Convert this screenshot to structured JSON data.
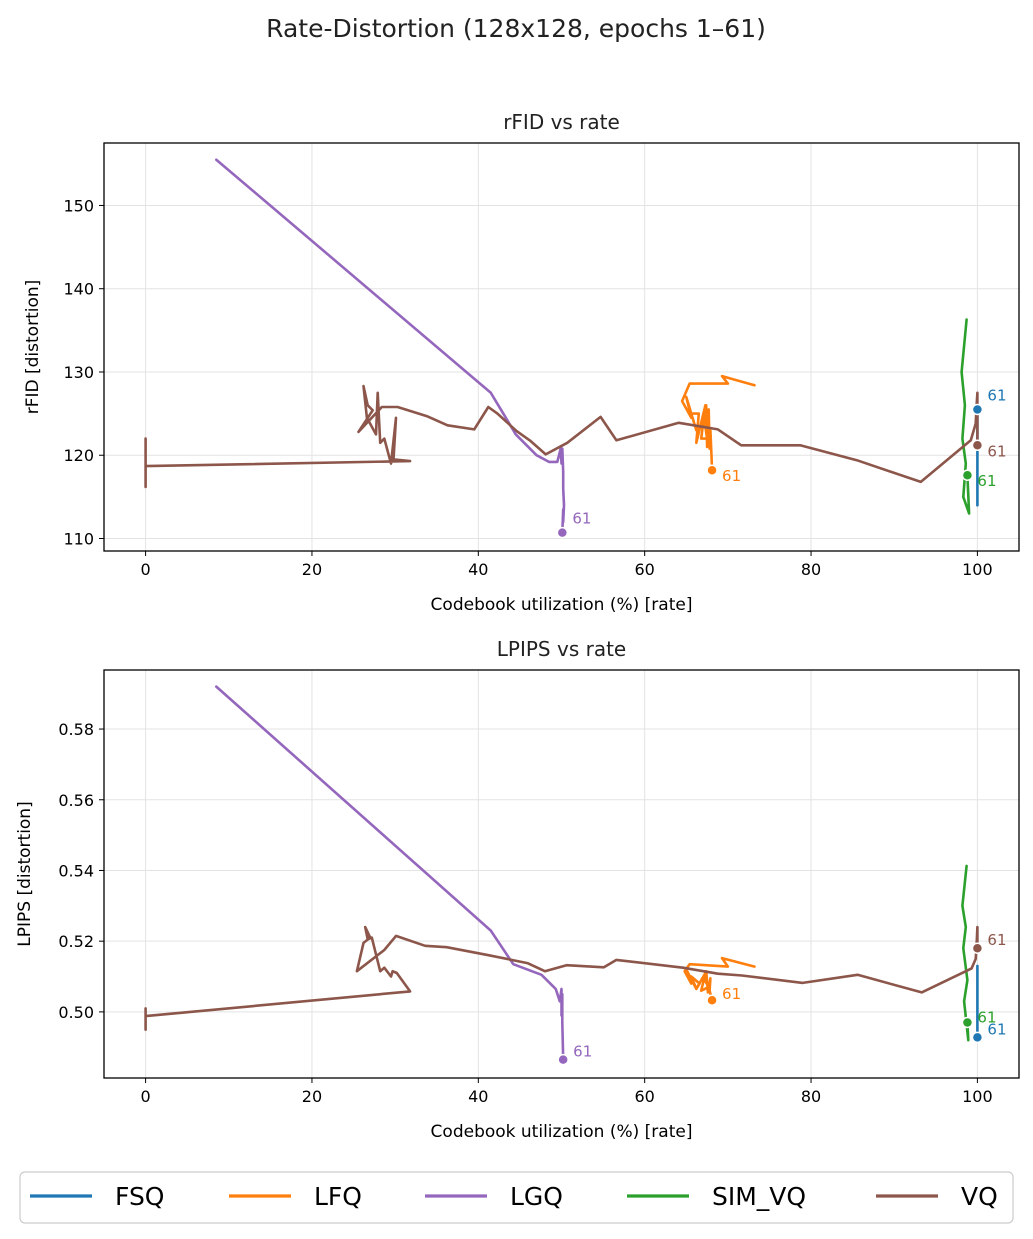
{
  "figure": {
    "suptitle": "Rate-Distortion (128x128, epochs 1–61)"
  },
  "colors": {
    "FSQ": "#1f77b4",
    "LFQ": "#ff7f0e",
    "LGQ": "#9467bd",
    "SIM_VQ": "#2ca02c",
    "VQ": "#8c564b"
  },
  "legend": [
    "FSQ",
    "LFQ",
    "LGQ",
    "SIM_VQ",
    "VQ"
  ],
  "chart_data": [
    {
      "type": "line",
      "title": "rFID vs rate",
      "xlabel": "Codebook utilization (%) [rate]",
      "ylabel": "rFID [distortion]",
      "xlim": [
        -5,
        105
      ],
      "ylim": [
        108.5,
        157.5
      ],
      "xticks": [
        0,
        20,
        40,
        60,
        80,
        100
      ],
      "yticks": [
        110,
        120,
        130,
        140,
        150
      ],
      "ytick_labels": [
        "110",
        "120",
        "130",
        "140",
        "150"
      ],
      "grid": true,
      "series": [
        {
          "name": "LGQ",
          "final_label": "61",
          "points": [
            [
              8.5,
              155.5
            ],
            [
              41.5,
              127.5
            ],
            [
              44.5,
              122.5
            ],
            [
              47,
              120
            ],
            [
              48.5,
              119.2
            ],
            [
              49.5,
              119.2
            ],
            [
              49.9,
              120.8
            ],
            [
              50,
              119
            ],
            [
              50.1,
              120.8
            ],
            [
              50.2,
              118
            ],
            [
              50.2,
              116
            ],
            [
              50.3,
              114
            ],
            [
              50.2,
              112
            ],
            [
              50.2,
              113.5
            ],
            [
              50.1,
              110.7
            ]
          ]
        },
        {
          "name": "LFQ",
          "final_label": "61",
          "points": [
            [
              73.2,
              128.4
            ],
            [
              69.3,
              129.5
            ],
            [
              70,
              128.6
            ],
            [
              65.4,
              128.6
            ],
            [
              64.5,
              126.5
            ],
            [
              65.6,
              124.5
            ],
            [
              65,
              127
            ],
            [
              66.2,
              123
            ],
            [
              65.6,
              125
            ],
            [
              66.5,
              125
            ],
            [
              66.2,
              121.5
            ],
            [
              67.3,
              126
            ],
            [
              66.8,
              122
            ],
            [
              67.5,
              122
            ],
            [
              67.2,
              124
            ],
            [
              67.4,
              126
            ],
            [
              67.5,
              121
            ],
            [
              67.7,
              125.5
            ],
            [
              67.8,
              120.8
            ],
            [
              67.9,
              123
            ],
            [
              68.1,
              118.2
            ]
          ]
        },
        {
          "name": "SIM_VQ",
          "final_label": "61",
          "points": [
            [
              98.7,
              136.3
            ],
            [
              98.1,
              130
            ],
            [
              98.5,
              126
            ],
            [
              98.2,
              122
            ],
            [
              98.6,
              119
            ],
            [
              98.3,
              115
            ],
            [
              99,
              113
            ],
            [
              98.8,
              117.6
            ]
          ]
        },
        {
          "name": "FSQ",
          "final_label": "61",
          "points": [
            [
              100,
              114
            ],
            [
              100,
              117
            ],
            [
              100,
              119.5
            ],
            [
              100,
              122
            ],
            [
              100,
              124
            ],
            [
              100,
              125.5
            ]
          ]
        },
        {
          "name": "VQ",
          "final_label": "61",
          "points": [
            [
              0,
              122
            ],
            [
              0,
              116.2
            ],
            [
              0,
              118.7
            ],
            [
              31.8,
              119.3
            ],
            [
              29.8,
              119.5
            ],
            [
              30.1,
              124.5
            ],
            [
              29.5,
              119
            ],
            [
              28.7,
              122
            ],
            [
              28.2,
              121.5
            ],
            [
              27.9,
              127.5
            ],
            [
              27.7,
              122.5
            ],
            [
              26.6,
              124.5
            ],
            [
              26.2,
              128.3
            ],
            [
              26.7,
              126
            ],
            [
              27.3,
              125.4
            ],
            [
              25.6,
              122.8
            ],
            [
              28.4,
              125.8
            ],
            [
              30.3,
              125.8
            ],
            [
              33.8,
              124.7
            ],
            [
              36.3,
              123.6
            ],
            [
              39.5,
              123.1
            ],
            [
              41.2,
              125.8
            ],
            [
              42.3,
              125
            ],
            [
              44.6,
              122.9
            ],
            [
              46.3,
              121.7
            ],
            [
              48.1,
              120.1
            ],
            [
              50.7,
              121.5
            ],
            [
              54.7,
              124.6
            ],
            [
              56.6,
              121.8
            ],
            [
              64.1,
              123.9
            ],
            [
              68.8,
              123.1
            ],
            [
              71.6,
              121.2
            ],
            [
              78.7,
              121.2
            ],
            [
              85.5,
              119.4
            ],
            [
              93.2,
              116.8
            ],
            [
              99.2,
              121.8
            ],
            [
              99.8,
              123.8
            ],
            [
              99.9,
              126
            ],
            [
              100,
              127.5
            ],
            [
              100,
              124
            ],
            [
              100,
              121.2
            ]
          ]
        }
      ]
    },
    {
      "type": "line",
      "title": "LPIPS vs rate",
      "xlabel": "Codebook utilization (%) [rate]",
      "ylabel": "LPIPS [distortion]",
      "xlim": [
        -5,
        105
      ],
      "ylim": [
        0.4813,
        0.5967
      ],
      "xticks": [
        0,
        20,
        40,
        60,
        80,
        100
      ],
      "yticks": [
        0.5,
        0.52,
        0.54,
        0.56,
        0.58
      ],
      "ytick_labels": [
        "0.50",
        "0.52",
        "0.54",
        "0.56",
        "0.58"
      ],
      "grid": true,
      "series": [
        {
          "name": "LGQ",
          "final_label": "61",
          "points": [
            [
              8.5,
              0.592
            ],
            [
              41.5,
              0.523
            ],
            [
              44.2,
              0.5135
            ],
            [
              47.6,
              0.5105
            ],
            [
              49.3,
              0.5065
            ],
            [
              49.8,
              0.503
            ],
            [
              50,
              0.5065
            ],
            [
              50,
              0.499
            ],
            [
              50.1,
              0.505
            ],
            [
              50.1,
              0.497
            ],
            [
              50.2,
              0.4865
            ]
          ]
        },
        {
          "name": "LFQ",
          "final_label": "61",
          "points": [
            [
              73.2,
              0.5128
            ],
            [
              69.3,
              0.5152
            ],
            [
              70,
              0.5128
            ],
            [
              65.4,
              0.5135
            ],
            [
              64.8,
              0.5115
            ],
            [
              65.6,
              0.508
            ],
            [
              65,
              0.512
            ],
            [
              66.2,
              0.5065
            ],
            [
              65.6,
              0.51
            ],
            [
              66.6,
              0.508
            ],
            [
              66.2,
              0.5065
            ],
            [
              67.3,
              0.511
            ],
            [
              66.8,
              0.506
            ],
            [
              67.7,
              0.507
            ],
            [
              67.2,
              0.509
            ],
            [
              67.4,
              0.5115
            ],
            [
              67.6,
              0.5055
            ],
            [
              67.9,
              0.5095
            ],
            [
              67.8,
              0.506
            ],
            [
              68.1,
              0.5033
            ]
          ]
        },
        {
          "name": "SIM_VQ",
          "final_label": "61",
          "points": [
            [
              98.7,
              0.5413
            ],
            [
              98.2,
              0.53
            ],
            [
              98.6,
              0.524
            ],
            [
              98.3,
              0.518
            ],
            [
              98.8,
              0.509
            ],
            [
              98.4,
              0.503
            ],
            [
              98.9,
              0.492
            ],
            [
              98.8,
              0.497
            ]
          ]
        },
        {
          "name": "FSQ",
          "final_label": "61",
          "points": [
            [
              100,
              0.495
            ],
            [
              100,
              0.5
            ],
            [
              100,
              0.504
            ],
            [
              100,
              0.508
            ],
            [
              100,
              0.513
            ],
            [
              100,
              0.4928
            ]
          ]
        },
        {
          "name": "VQ",
          "final_label": "61",
          "points": [
            [
              0,
              0.501
            ],
            [
              0,
              0.495
            ],
            [
              0,
              0.4988
            ],
            [
              31.8,
              0.5058
            ],
            [
              30.2,
              0.511
            ],
            [
              29.7,
              0.5115
            ],
            [
              29.5,
              0.51
            ],
            [
              28.7,
              0.5125
            ],
            [
              28.2,
              0.5115
            ],
            [
              27.2,
              0.521
            ],
            [
              26.7,
              0.5205
            ],
            [
              26.4,
              0.524
            ],
            [
              27,
              0.521
            ],
            [
              26.2,
              0.5195
            ],
            [
              25.4,
              0.5115
            ],
            [
              28.7,
              0.5175
            ],
            [
              30.1,
              0.5215
            ],
            [
              33.6,
              0.5187
            ],
            [
              36.2,
              0.5183
            ],
            [
              41.3,
              0.516
            ],
            [
              45.9,
              0.5138
            ],
            [
              48,
              0.5115
            ],
            [
              50.6,
              0.5132
            ],
            [
              55.1,
              0.5126
            ],
            [
              56.6,
              0.5147
            ],
            [
              64.6,
              0.5125
            ],
            [
              68.8,
              0.5108
            ],
            [
              71.7,
              0.5103
            ],
            [
              79,
              0.5082
            ],
            [
              85.6,
              0.5105
            ],
            [
              93.3,
              0.5055
            ],
            [
              99.3,
              0.5123
            ],
            [
              99.8,
              0.515
            ],
            [
              99.9,
              0.519
            ],
            [
              100,
              0.524
            ],
            [
              100,
              0.518
            ]
          ]
        }
      ]
    }
  ]
}
